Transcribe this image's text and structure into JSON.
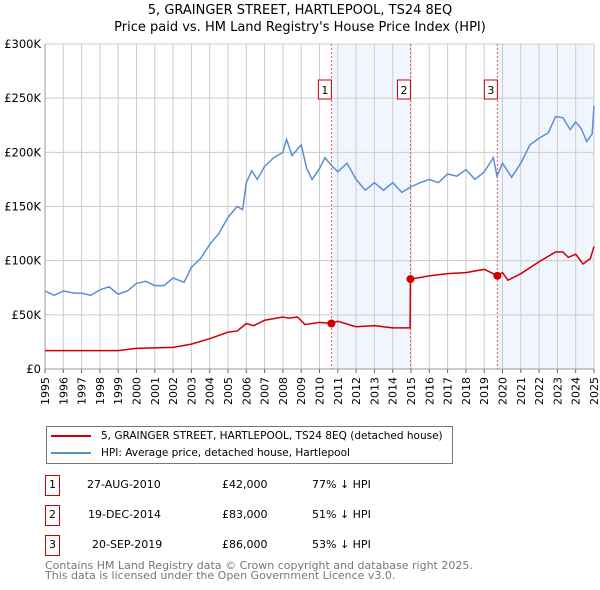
{
  "title": "5, GRAINGER STREET, HARTLEPOOL, TS24 8EQ",
  "subtitle": "Price paid vs. HM Land Registry's House Price Index (HPI)",
  "chart_data": {
    "type": "line",
    "xlim": [
      1995,
      2025
    ],
    "ylim": [
      0,
      300000
    ],
    "y_ticks": [
      {
        "v": 0,
        "label": "£0"
      },
      {
        "v": 50000,
        "label": "£50K"
      },
      {
        "v": 100000,
        "label": "£100K"
      },
      {
        "v": 150000,
        "label": "£150K"
      },
      {
        "v": 200000,
        "label": "£200K"
      },
      {
        "v": 250000,
        "label": "£250K"
      },
      {
        "v": 300000,
        "label": "£300K"
      }
    ],
    "x_ticks": [
      "1995",
      "1996",
      "1997",
      "1998",
      "1999",
      "2000",
      "2001",
      "2002",
      "2003",
      "2004",
      "2005",
      "2006",
      "2007",
      "2008",
      "2009",
      "2010",
      "2011",
      "2012",
      "2013",
      "2014",
      "2015",
      "2016",
      "2017",
      "2018",
      "2019",
      "2020",
      "2021",
      "2022",
      "2023",
      "2024",
      "2025"
    ],
    "grid": true,
    "shaded_ranges": [
      [
        2010.65,
        2014.97
      ],
      [
        2019.72,
        2025
      ]
    ],
    "series": [
      {
        "name": "5, GRAINGER STREET, HARTLEPOOL, TS24 8EQ (detached house)",
        "color": "#cc0000",
        "x": [
          1995,
          1999,
          2000,
          2002,
          2003,
          2004,
          2005,
          2005.5,
          2006,
          2006.4,
          2007,
          2008,
          2008.3,
          2008.8,
          2009.2,
          2010,
          2010.65,
          2011,
          2012,
          2013,
          2014,
          2014.95,
          2014.97,
          2016,
          2017,
          2018,
          2019,
          2019.5,
          2019.72,
          2020,
          2020.3,
          2021,
          2022,
          2022.9,
          2023.3,
          2023.6,
          2024,
          2024.4,
          2024.8,
          2025
        ],
        "y": [
          17000,
          17000,
          19000,
          20000,
          23000,
          28000,
          34000,
          35000,
          42000,
          40000,
          45000,
          48000,
          47000,
          48000,
          41000,
          43000,
          42000,
          44000,
          39000,
          40000,
          38000,
          38000,
          83000,
          86000,
          88000,
          89000,
          92000,
          88000,
          86000,
          89000,
          82000,
          88000,
          99000,
          108000,
          108000,
          103000,
          106000,
          97000,
          102000,
          113000
        ]
      },
      {
        "name": "HPI: Average price, detached house, Hartlepool",
        "color": "#5b8fd4",
        "x": [
          1995,
          1995.5,
          1996,
          1996.6,
          1997,
          1997.5,
          1998,
          1998.5,
          1999,
          1999.5,
          2000,
          2000.5,
          2001,
          2001.5,
          2002,
          2002.6,
          2003,
          2003.5,
          2004,
          2004.5,
          2005,
          2005.5,
          2005.8,
          2006,
          2006.3,
          2006.6,
          2007,
          2007.5,
          2008,
          2008.2,
          2008.5,
          2009,
          2009.3,
          2009.6,
          2010,
          2010.3,
          2010.7,
          2011,
          2011.5,
          2012,
          2012.5,
          2013,
          2013.5,
          2014,
          2014.5,
          2014.97,
          2015.5,
          2016,
          2016.5,
          2017,
          2017.5,
          2018,
          2018.5,
          2019,
          2019.5,
          2019.7,
          2020,
          2020.5,
          2021,
          2021.5,
          2022,
          2022.5,
          2022.9,
          2023.3,
          2023.7,
          2024,
          2024.3,
          2024.6,
          2024.9,
          2025
        ],
        "y": [
          72000,
          68000,
          72000,
          70000,
          70000,
          68000,
          73000,
          76000,
          69000,
          72000,
          79000,
          81000,
          77000,
          77000,
          84000,
          80000,
          94000,
          102000,
          115000,
          125000,
          140000,
          150000,
          147000,
          172000,
          183000,
          175000,
          187000,
          195000,
          200000,
          212000,
          197000,
          207000,
          185000,
          175000,
          185000,
          195000,
          187000,
          182000,
          190000,
          175000,
          165000,
          172000,
          165000,
          172000,
          163000,
          168000,
          172000,
          175000,
          172000,
          180000,
          178000,
          184000,
          175000,
          182000,
          195000,
          178000,
          190000,
          177000,
          190000,
          207000,
          213000,
          218000,
          233000,
          232000,
          221000,
          228000,
          222000,
          210000,
          217000,
          243000
        ]
      }
    ],
    "sales": [
      {
        "n": "1",
        "x": 2010.65,
        "price": 42000,
        "date": "27-AUG-2010",
        "price_label": "£42,000",
        "hpi": "77% ↓ HPI"
      },
      {
        "n": "2",
        "x": 2014.97,
        "price": 83000,
        "date": "19-DEC-2014",
        "price_label": "£83,000",
        "hpi": "51% ↓ HPI"
      },
      {
        "n": "3",
        "x": 2019.72,
        "price": 86000,
        "date": "20-SEP-2019",
        "price_label": "£86,000",
        "hpi": "53% ↓ HPI"
      }
    ]
  },
  "footer": {
    "line1": "Contains HM Land Registry data © Crown copyright and database right 2025.",
    "line2": "This data is licensed under the Open Government Licence v3.0."
  }
}
